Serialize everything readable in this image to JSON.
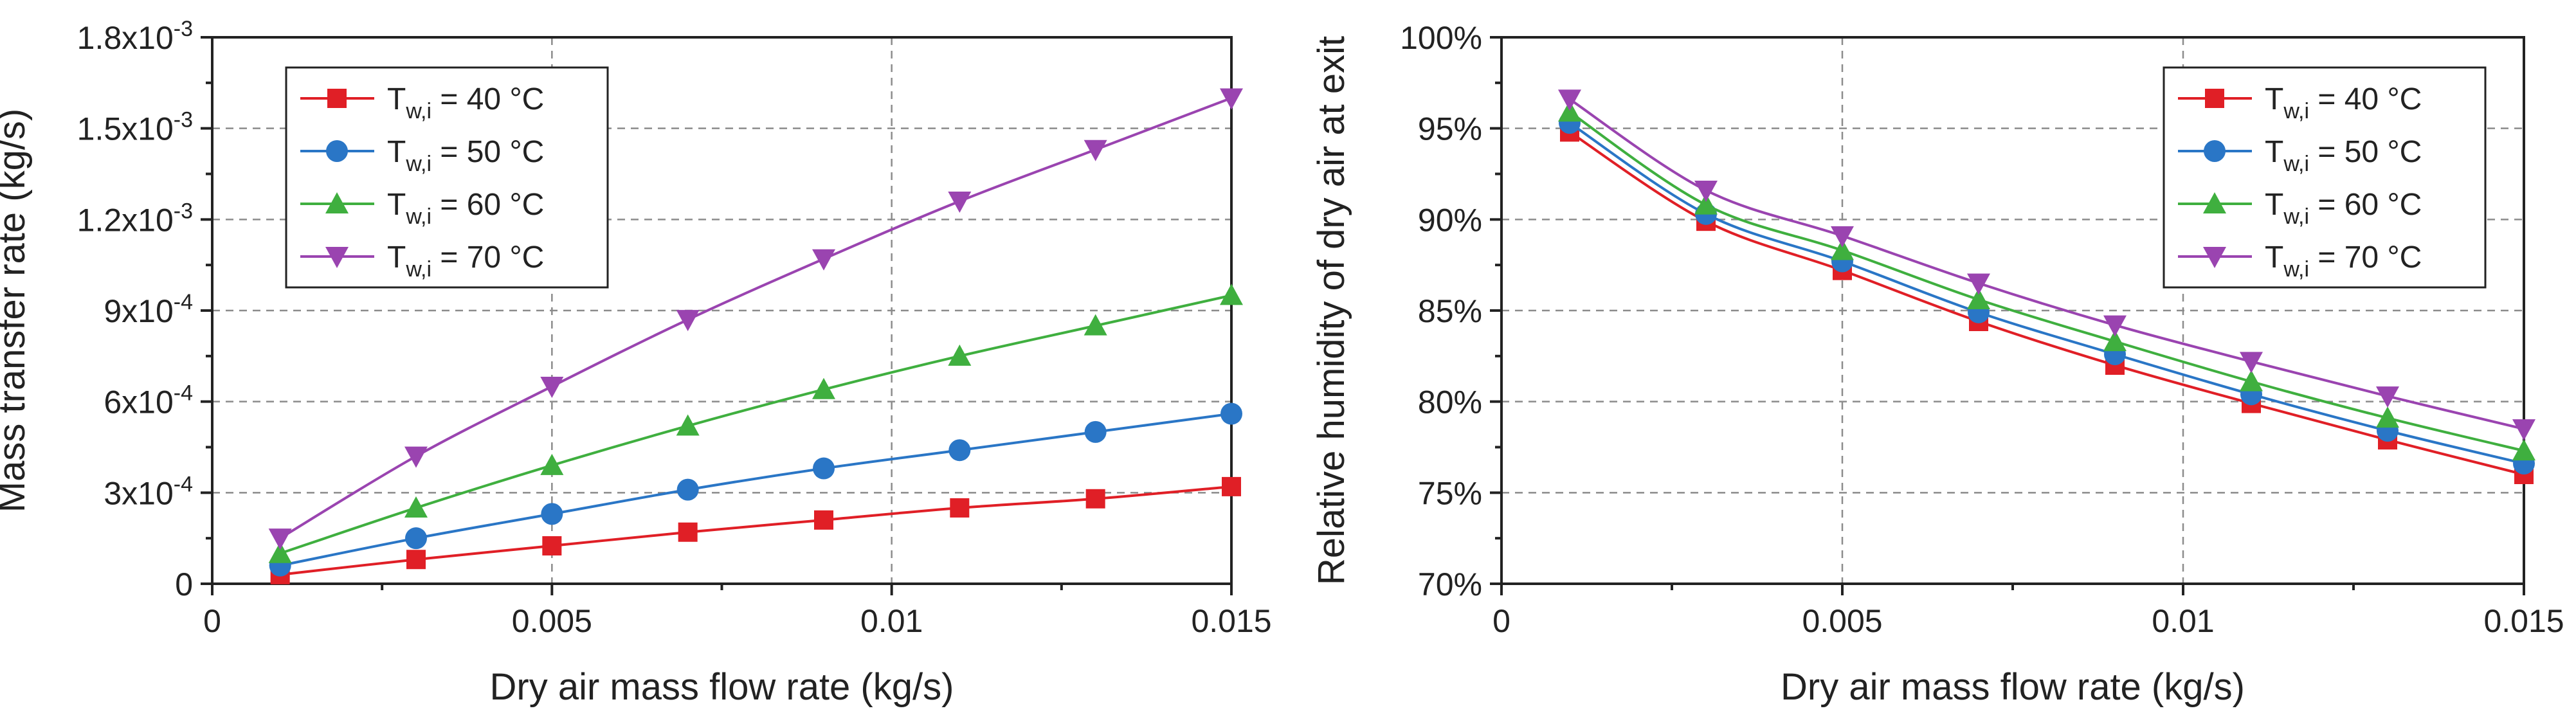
{
  "colors": {
    "s40": "#e01f26",
    "s50": "#2a76c6",
    "s60": "#3faf3f",
    "s70": "#9a44b0"
  },
  "chart_data": [
    {
      "type": "line",
      "id": "left",
      "xlabel": "Dry air mass flow rate (kg/s)",
      "ylabel": "Mass transfer rate (kg/s)",
      "xlim": [
        0,
        0.015
      ],
      "ylim": [
        0,
        0.0018
      ],
      "x_ticks": [
        0,
        0.005,
        0.01,
        0.015
      ],
      "x_tick_labels": [
        "0",
        "0.005",
        "0.01",
        "0.015"
      ],
      "y_ticks": [
        0,
        0.0003,
        0.0006,
        0.0009,
        0.0012,
        0.0015,
        0.0018
      ],
      "y_tick_labels": [
        {
          "base": "0",
          "exp": ""
        },
        {
          "base": "3x10",
          "exp": "-4"
        },
        {
          "base": "6x10",
          "exp": "-4"
        },
        {
          "base": "9x10",
          "exp": "-4"
        },
        {
          "base": "1.2x10",
          "exp": "-3"
        },
        {
          "base": "1.5x10",
          "exp": "-3"
        },
        {
          "base": "1.8x10",
          "exp": "-3"
        }
      ],
      "legend_position": "top-left",
      "grid": true,
      "x": [
        0.001,
        0.003,
        0.005,
        0.007,
        0.009,
        0.011,
        0.013,
        0.015
      ],
      "series": [
        {
          "name_main": "T",
          "name_sub": "w,i",
          "name_rest": " = 40 °C",
          "color_key": "s40",
          "marker": "square",
          "values": [
            3e-05,
            8e-05,
            0.000125,
            0.00017,
            0.00021,
            0.00025,
            0.00028,
            0.00032
          ]
        },
        {
          "name_main": "T",
          "name_sub": "w,i",
          "name_rest": " = 50 °C",
          "color_key": "s50",
          "marker": "circle",
          "values": [
            6e-05,
            0.00015,
            0.00023,
            0.00031,
            0.00038,
            0.00044,
            0.0005,
            0.00056
          ]
        },
        {
          "name_main": "T",
          "name_sub": "w,i",
          "name_rest": " = 60 °C",
          "color_key": "s60",
          "marker": "triangle-up",
          "values": [
            0.0001,
            0.00025,
            0.00039,
            0.00052,
            0.00064,
            0.00075,
            0.00085,
            0.00095
          ]
        },
        {
          "name_main": "T",
          "name_sub": "w,i",
          "name_rest": " = 70 °C",
          "color_key": "s70",
          "marker": "triangle-down",
          "values": [
            0.00015,
            0.00042,
            0.00065,
            0.00087,
            0.00107,
            0.00126,
            0.00143,
            0.0016
          ]
        }
      ]
    },
    {
      "type": "line",
      "id": "right",
      "xlabel": "Dry air mass flow rate (kg/s)",
      "ylabel": "Relative humidity of dry air at exit",
      "xlim": [
        0,
        0.015
      ],
      "ylim": [
        70,
        100
      ],
      "x_ticks": [
        0,
        0.005,
        0.01,
        0.015
      ],
      "x_tick_labels": [
        "0",
        "0.005",
        "0.01",
        "0.015"
      ],
      "y_ticks": [
        70,
        75,
        80,
        85,
        90,
        95,
        100
      ],
      "y_tick_labels": [
        {
          "base": "70%",
          "exp": ""
        },
        {
          "base": "75%",
          "exp": ""
        },
        {
          "base": "80%",
          "exp": ""
        },
        {
          "base": "85%",
          "exp": ""
        },
        {
          "base": "90%",
          "exp": ""
        },
        {
          "base": "95%",
          "exp": ""
        },
        {
          "base": "100%",
          "exp": ""
        }
      ],
      "legend_position": "top-right",
      "grid": true,
      "x": [
        0.001,
        0.003,
        0.005,
        0.007,
        0.009,
        0.011,
        0.013,
        0.015
      ],
      "series": [
        {
          "name_main": "T",
          "name_sub": "w,i",
          "name_rest": " = 40 °C",
          "color_key": "s40",
          "marker": "square",
          "values": [
            94.8,
            89.9,
            87.2,
            84.4,
            82.0,
            79.9,
            77.9,
            76.0
          ]
        },
        {
          "name_main": "T",
          "name_sub": "w,i",
          "name_rest": " = 50 °C",
          "color_key": "s50",
          "marker": "circle",
          "values": [
            95.3,
            90.3,
            87.7,
            84.9,
            82.6,
            80.4,
            78.4,
            76.6
          ]
        },
        {
          "name_main": "T",
          "name_sub": "w,i",
          "name_rest": " = 60 °C",
          "color_key": "s60",
          "marker": "triangle-up",
          "values": [
            95.9,
            90.8,
            88.3,
            85.6,
            83.3,
            81.1,
            79.1,
            77.3
          ]
        },
        {
          "name_main": "T",
          "name_sub": "w,i",
          "name_rest": " = 70 °C",
          "color_key": "s70",
          "marker": "triangle-down",
          "values": [
            96.6,
            91.6,
            89.1,
            86.5,
            84.2,
            82.2,
            80.3,
            78.5
          ]
        }
      ]
    }
  ]
}
